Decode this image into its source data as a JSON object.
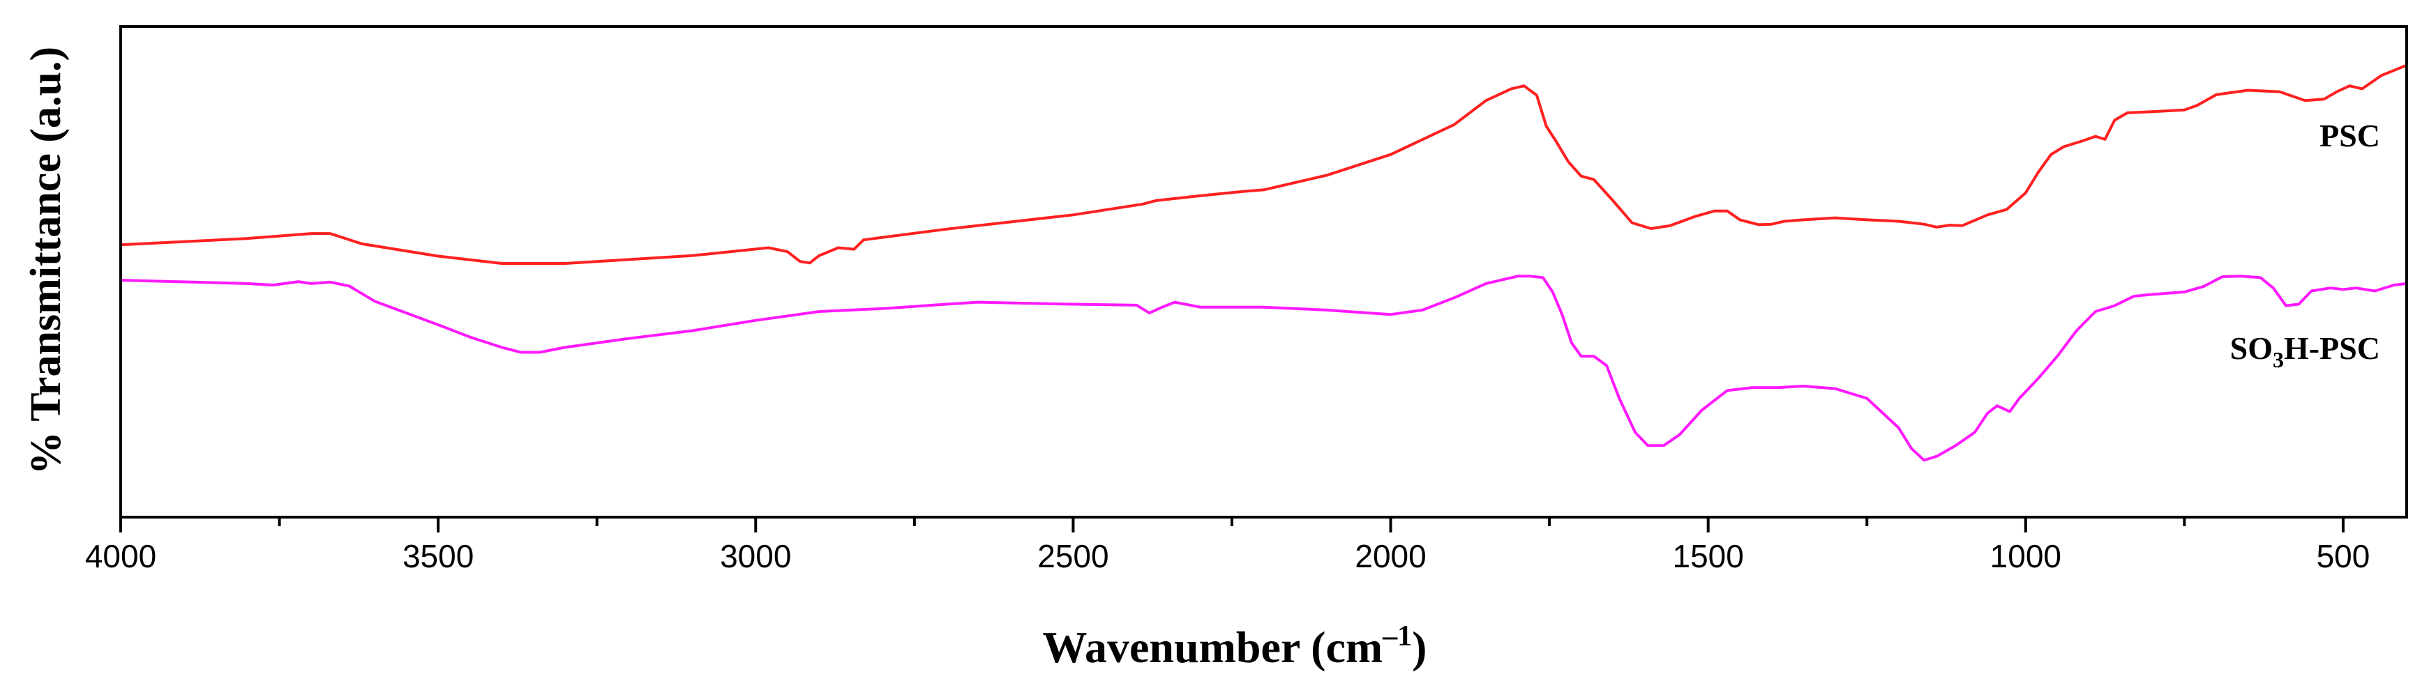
{
  "chart_data": {
    "type": "line",
    "title": "",
    "xlabel": "Wavenumber (cm",
    "xlabel_sup": "–1",
    "xlabel_end": ")",
    "ylabel": "% Transmittance (a.u.)",
    "xlim": [
      4000,
      400
    ],
    "x_reversed": true,
    "ylim": [
      0,
      100
    ],
    "y_ticks_shown": false,
    "x_ticks": [
      4000,
      3500,
      3000,
      2500,
      2000,
      1500,
      1000,
      500
    ],
    "x_minor_ticks": [
      3750,
      3250,
      2750,
      2250,
      1750,
      1250,
      750
    ],
    "grid": false,
    "legend": "inline labels at right",
    "series": [
      {
        "name": "PSC",
        "label_main": "PSC",
        "label_sub": "",
        "label_tail": "",
        "color": "#ff2020",
        "points": [
          [
            4000,
            55.5
          ],
          [
            3800,
            56.8
          ],
          [
            3700,
            57.8
          ],
          [
            3670,
            57.8
          ],
          [
            3620,
            55.7
          ],
          [
            3500,
            53.2
          ],
          [
            3400,
            51.7
          ],
          [
            3300,
            51.7
          ],
          [
            3100,
            53.3
          ],
          [
            2980,
            54.9
          ],
          [
            2950,
            54.1
          ],
          [
            2930,
            52.1
          ],
          [
            2915,
            51.8
          ],
          [
            2900,
            53.3
          ],
          [
            2870,
            54.9
          ],
          [
            2845,
            54.6
          ],
          [
            2830,
            56.5
          ],
          [
            2700,
            58.7
          ],
          [
            2500,
            61.6
          ],
          [
            2390,
            63.8
          ],
          [
            2370,
            64.5
          ],
          [
            2300,
            65.5
          ],
          [
            2230,
            66.4
          ],
          [
            2200,
            66.7
          ],
          [
            2100,
            69.7
          ],
          [
            2000,
            73.9
          ],
          [
            1900,
            80.0
          ],
          [
            1850,
            84.9
          ],
          [
            1810,
            87.3
          ],
          [
            1790,
            87.9
          ],
          [
            1770,
            86.0
          ],
          [
            1755,
            79.7
          ],
          [
            1740,
            76.7
          ],
          [
            1720,
            72.4
          ],
          [
            1700,
            69.5
          ],
          [
            1680,
            68.8
          ],
          [
            1650,
            64.5
          ],
          [
            1620,
            60.0
          ],
          [
            1590,
            58.8
          ],
          [
            1560,
            59.4
          ],
          [
            1520,
            61.3
          ],
          [
            1490,
            62.4
          ],
          [
            1470,
            62.4
          ],
          [
            1450,
            60.6
          ],
          [
            1420,
            59.6
          ],
          [
            1400,
            59.7
          ],
          [
            1380,
            60.3
          ],
          [
            1350,
            60.6
          ],
          [
            1300,
            61.0
          ],
          [
            1250,
            60.6
          ],
          [
            1200,
            60.3
          ],
          [
            1160,
            59.7
          ],
          [
            1140,
            59.1
          ],
          [
            1120,
            59.5
          ],
          [
            1100,
            59.4
          ],
          [
            1060,
            61.6
          ],
          [
            1030,
            62.7
          ],
          [
            1000,
            66.1
          ],
          [
            980,
            70.3
          ],
          [
            960,
            73.9
          ],
          [
            940,
            75.5
          ],
          [
            910,
            76.7
          ],
          [
            890,
            77.6
          ],
          [
            875,
            77.0
          ],
          [
            860,
            80.9
          ],
          [
            840,
            82.4
          ],
          [
            790,
            82.7
          ],
          [
            750,
            83.0
          ],
          [
            730,
            83.9
          ],
          [
            700,
            86.1
          ],
          [
            650,
            87.0
          ],
          [
            600,
            86.7
          ],
          [
            560,
            84.9
          ],
          [
            530,
            85.2
          ],
          [
            510,
            86.7
          ],
          [
            490,
            87.9
          ],
          [
            470,
            87.3
          ],
          [
            440,
            90.0
          ],
          [
            400,
            92.1
          ]
        ]
      },
      {
        "name": "SO3H-PSC",
        "label_main": "SO",
        "label_sub": "3",
        "label_tail": "H-PSC",
        "color": "#ff1aff",
        "points": [
          [
            4000,
            48.3
          ],
          [
            3800,
            47.6
          ],
          [
            3760,
            47.3
          ],
          [
            3720,
            48.0
          ],
          [
            3700,
            47.6
          ],
          [
            3670,
            47.9
          ],
          [
            3640,
            47.1
          ],
          [
            3600,
            44.0
          ],
          [
            3500,
            39.2
          ],
          [
            3450,
            36.7
          ],
          [
            3400,
            34.6
          ],
          [
            3370,
            33.6
          ],
          [
            3340,
            33.6
          ],
          [
            3300,
            34.6
          ],
          [
            3200,
            36.4
          ],
          [
            3100,
            38.0
          ],
          [
            3000,
            40.1
          ],
          [
            2900,
            41.9
          ],
          [
            2800,
            42.5
          ],
          [
            2700,
            43.4
          ],
          [
            2650,
            43.8
          ],
          [
            2500,
            43.4
          ],
          [
            2400,
            43.2
          ],
          [
            2380,
            41.6
          ],
          [
            2360,
            42.8
          ],
          [
            2340,
            43.8
          ],
          [
            2300,
            42.8
          ],
          [
            2200,
            42.8
          ],
          [
            2100,
            42.2
          ],
          [
            2000,
            41.3
          ],
          [
            1950,
            42.2
          ],
          [
            1900,
            44.7
          ],
          [
            1850,
            47.6
          ],
          [
            1800,
            49.1
          ],
          [
            1780,
            49.1
          ],
          [
            1760,
            48.8
          ],
          [
            1745,
            45.9
          ],
          [
            1730,
            41.3
          ],
          [
            1715,
            35.5
          ],
          [
            1700,
            32.8
          ],
          [
            1680,
            32.8
          ],
          [
            1660,
            30.9
          ],
          [
            1640,
            24.2
          ],
          [
            1615,
            17.3
          ],
          [
            1595,
            14.6
          ],
          [
            1570,
            14.6
          ],
          [
            1545,
            16.8
          ],
          [
            1510,
            21.8
          ],
          [
            1470,
            25.8
          ],
          [
            1430,
            26.4
          ],
          [
            1390,
            26.4
          ],
          [
            1350,
            26.7
          ],
          [
            1300,
            26.2
          ],
          [
            1250,
            24.2
          ],
          [
            1200,
            18.2
          ],
          [
            1180,
            14.0
          ],
          [
            1160,
            11.6
          ],
          [
            1140,
            12.4
          ],
          [
            1110,
            14.6
          ],
          [
            1080,
            17.3
          ],
          [
            1060,
            21.2
          ],
          [
            1045,
            22.7
          ],
          [
            1025,
            21.5
          ],
          [
            1010,
            24.2
          ],
          [
            980,
            28.3
          ],
          [
            950,
            32.8
          ],
          [
            920,
            38.0
          ],
          [
            890,
            41.9
          ],
          [
            860,
            43.1
          ],
          [
            830,
            45.0
          ],
          [
            810,
            45.3
          ],
          [
            780,
            45.6
          ],
          [
            750,
            45.9
          ],
          [
            720,
            47.0
          ],
          [
            690,
            49.0
          ],
          [
            660,
            49.1
          ],
          [
            630,
            48.8
          ],
          [
            610,
            46.7
          ],
          [
            590,
            43.1
          ],
          [
            570,
            43.4
          ],
          [
            550,
            46.1
          ],
          [
            520,
            46.7
          ],
          [
            500,
            46.4
          ],
          [
            480,
            46.7
          ],
          [
            450,
            46.1
          ],
          [
            420,
            47.3
          ],
          [
            400,
            47.6
          ]
        ]
      }
    ]
  }
}
